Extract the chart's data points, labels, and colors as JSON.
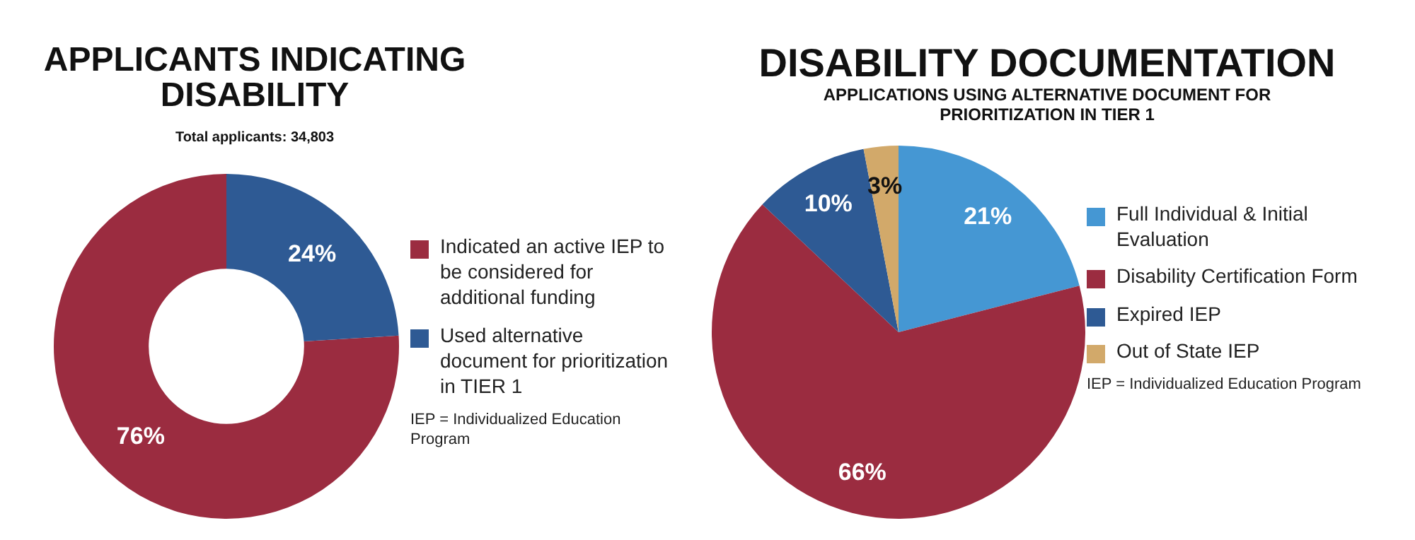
{
  "chart_data": [
    {
      "type": "donut",
      "title": "APPLICANTS INDICATING DISABILITY",
      "subtitle": "Total applicants: 34,803",
      "categories": [
        "Indicated an active IEP to be considered for additional funding",
        "Used alternative document for prioritization in TIER 1"
      ],
      "values": [
        76,
        24
      ],
      "colors": [
        "#9b2c40",
        "#2e5a94"
      ],
      "value_labels": [
        "76%",
        "24%"
      ],
      "legend": "right",
      "annotations": [
        "IEP = Individualized Education Program"
      ]
    },
    {
      "type": "pie",
      "title": "DISABILITY DOCUMENTATION",
      "subtitle": "APPLICATIONS USING ALTERNATIVE DOCUMENT FOR PRIORITIZATION IN TIER 1",
      "categories": [
        "Full Individual & Initial Evaluation",
        "Disability Certification Form",
        "Expired IEP",
        "Out of State IEP"
      ],
      "values": [
        21,
        66,
        10,
        3
      ],
      "colors": [
        "#4597d3",
        "#9b2c40",
        "#2e5a94",
        "#d2a96a"
      ],
      "value_labels": [
        "21%",
        "66%",
        "10%",
        "3%"
      ],
      "legend": "right",
      "annotations": [
        "IEP = Individualized Education Program"
      ]
    }
  ]
}
